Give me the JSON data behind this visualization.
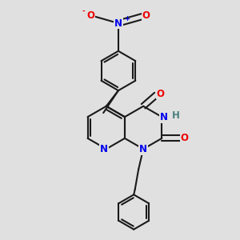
{
  "bg_color": "#e0e0e0",
  "bond_color": "#1a1a1a",
  "bond_width": 1.5,
  "dbo": 0.012,
  "atom_colors": {
    "N": "#0000ee",
    "O": "#ee0000",
    "H": "#4a8080",
    "C": "#1a1a1a"
  },
  "fs": 8.5,
  "fs_small": 6.0
}
